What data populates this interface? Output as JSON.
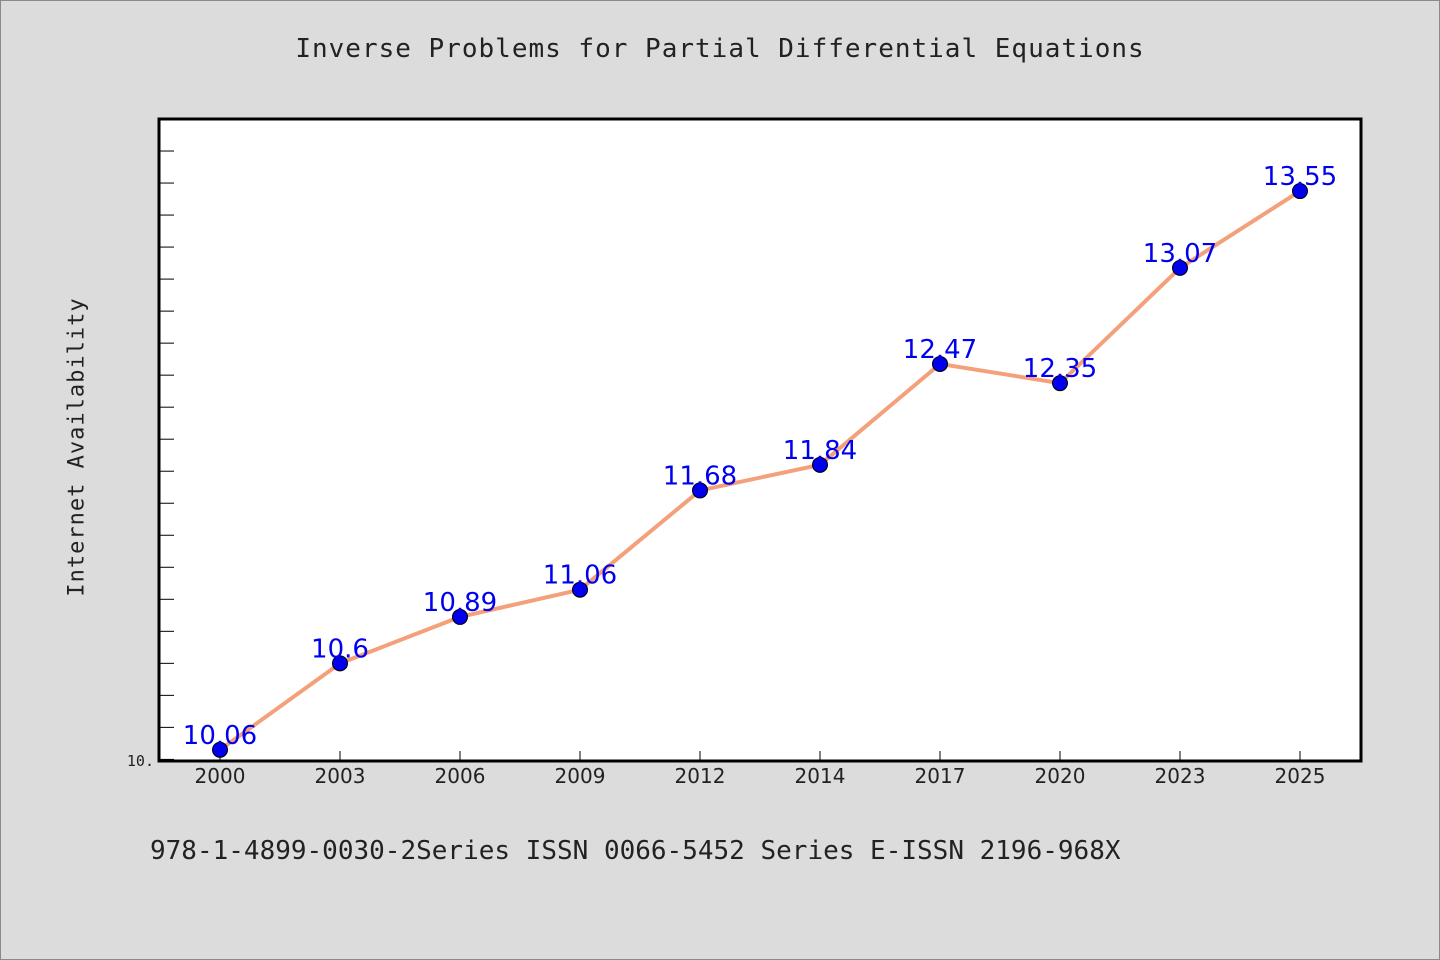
{
  "chart_data": {
    "type": "line",
    "title": "Inverse Problems for Partial Differential Equations",
    "xlabel": "",
    "ylabel": "Internet Availability",
    "categories": [
      "2000",
      "2003",
      "2006",
      "2009",
      "2012",
      "2014",
      "2017",
      "2020",
      "2023",
      "2025"
    ],
    "series": [
      {
        "values": [
          10.06,
          10.6,
          10.89,
          11.06,
          11.68,
          11.84,
          12.47,
          12.35,
          13.07,
          13.55
        ]
      }
    ],
    "data_labels": [
      "10.06",
      "10.6",
      "10.89",
      "11.06",
      "11.68",
      "11.84",
      "12.47",
      "12.35",
      "13.07",
      "13.55"
    ],
    "y_tick_label": "10.",
    "ylim": [
      9.99,
      14.0
    ],
    "grid": false,
    "legend": "none",
    "colors": {
      "line": "#f4a07a",
      "marker": "#0000ee",
      "label": "#0000ee",
      "plot_bg": "#ffffff",
      "page_bg": "#dcdcdc"
    }
  },
  "footer_text": "978-1-4899-0030-2Series ISSN 0066-5452 Series E-ISSN 2196-968X"
}
